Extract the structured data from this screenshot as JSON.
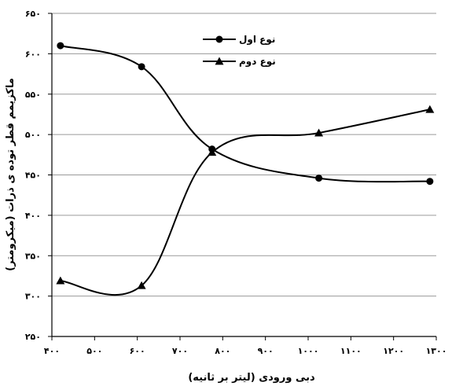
{
  "chart_data": {
    "type": "line",
    "xlabel": "دبی ورودی (لیتر بر ثانیه)",
    "ylabel": "ماکزیمم قطر توده ی ذرات (میکرومتر)",
    "xlim": [
      400,
      1300
    ],
    "ylim": [
      250,
      650
    ],
    "x_ticks": [
      400,
      500,
      600,
      700,
      800,
      900,
      1000,
      1100,
      1200,
      1300
    ],
    "y_ticks": [
      250,
      300,
      350,
      400,
      450,
      500,
      550,
      600,
      650
    ],
    "x_tick_labels": [
      "۴۰۰",
      "۵۰۰",
      "۶۰۰",
      "۷۰۰",
      "۸۰۰",
      "۹۰۰",
      "۱۰۰۰",
      "۱۱۰۰",
      "۱۲۰۰",
      "۱۳۰۰"
    ],
    "y_tick_labels": [
      "۲۵۰",
      "۳۰۰",
      "۳۵۰",
      "۴۰۰",
      "۴۵۰",
      "۵۰۰",
      "۵۵۰",
      "۶۰۰",
      "۶۵۰"
    ],
    "grid": "horizontal",
    "legend_position": "top-center",
    "series": [
      {
        "name": "نوع اول",
        "marker": "circle",
        "color": "#000000",
        "x": [
          420,
          610,
          775,
          1025,
          1285
        ],
        "values": [
          610,
          584,
          482,
          446,
          442
        ]
      },
      {
        "name": "نوع دوم",
        "marker": "triangle",
        "color": "#000000",
        "x": [
          420,
          610,
          775,
          1025,
          1285
        ],
        "values": [
          319,
          313,
          478,
          502,
          531
        ]
      }
    ]
  }
}
